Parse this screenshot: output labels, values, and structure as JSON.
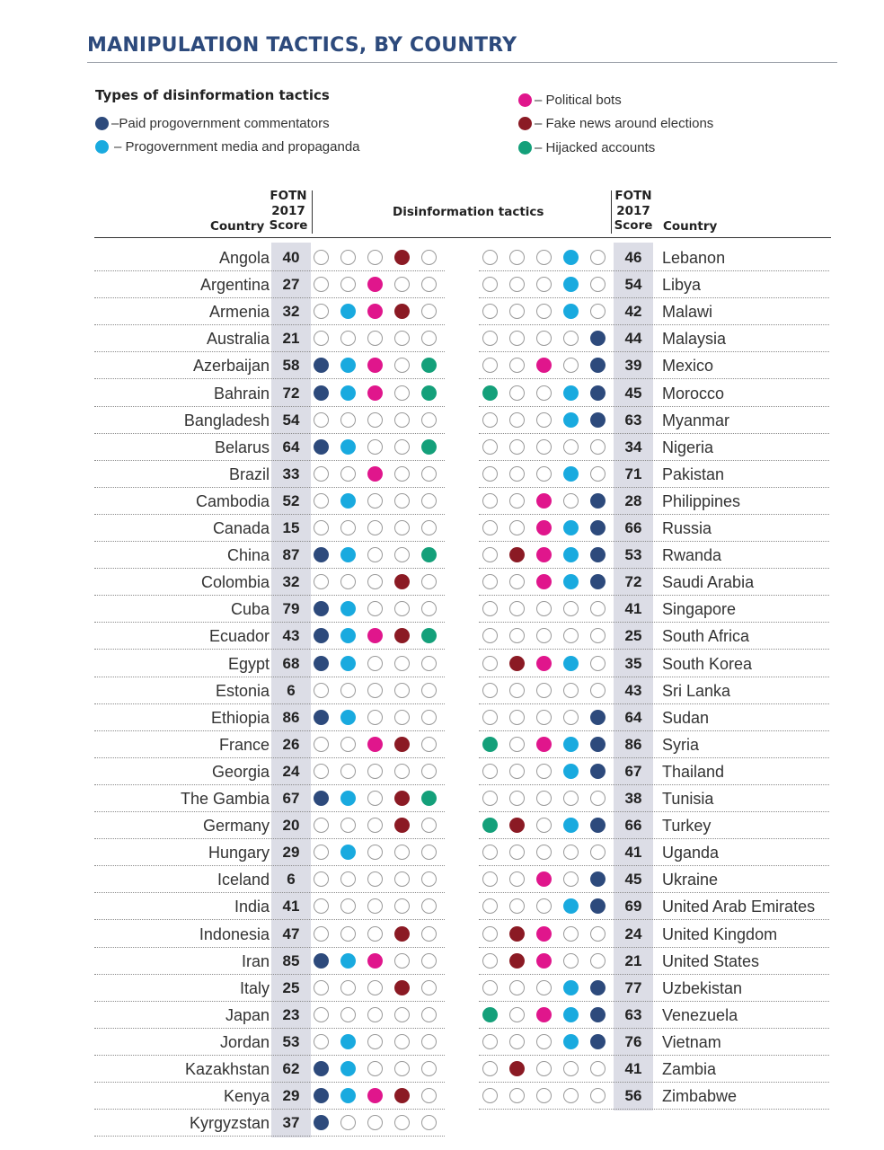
{
  "title": "MANIPULATION TACTICS, BY COUNTRY",
  "legend": {
    "title": "Types of disinformation tactics",
    "items": [
      {
        "key": "paid",
        "label": "–Paid progovernment commentators",
        "color": "#2d4a7c"
      },
      {
        "key": "media",
        "label": "– Progovernment media and propaganda",
        "color": "#19aadf"
      },
      {
        "key": "bots",
        "label": "– Political bots",
        "color": "#e0168c"
      },
      {
        "key": "fake",
        "label": "– Fake news around elections",
        "color": "#8b1a24"
      },
      {
        "key": "hijack",
        "label": "– Hijacked accounts",
        "color": "#14a07a"
      }
    ]
  },
  "header": {
    "country": "Country",
    "score_line1": "FOTN",
    "score_line2": "2017",
    "score_line3": "Score",
    "tactics": "Disinformation tactics"
  },
  "chart_data": {
    "type": "table",
    "columns": [
      "Country",
      "FOTN 2017 Score",
      "Disinformation tactics"
    ],
    "left": [
      {
        "country": "Angola",
        "score": 40,
        "tactics": [
          0,
          0,
          0,
          1,
          0
        ]
      },
      {
        "country": "Argentina",
        "score": 27,
        "tactics": [
          0,
          0,
          1,
          0,
          0
        ]
      },
      {
        "country": "Armenia",
        "score": 32,
        "tactics": [
          0,
          1,
          1,
          1,
          0
        ]
      },
      {
        "country": "Australia",
        "score": 21,
        "tactics": [
          0,
          0,
          0,
          0,
          0
        ]
      },
      {
        "country": "Azerbaijan",
        "score": 58,
        "tactics": [
          1,
          1,
          1,
          0,
          1
        ]
      },
      {
        "country": "Bahrain",
        "score": 72,
        "tactics": [
          1,
          1,
          1,
          0,
          1
        ]
      },
      {
        "country": "Bangladesh",
        "score": 54,
        "tactics": [
          0,
          0,
          0,
          0,
          0
        ]
      },
      {
        "country": "Belarus",
        "score": 64,
        "tactics": [
          1,
          1,
          0,
          0,
          1
        ]
      },
      {
        "country": "Brazil",
        "score": 33,
        "tactics": [
          0,
          0,
          1,
          0,
          0
        ]
      },
      {
        "country": "Cambodia",
        "score": 52,
        "tactics": [
          0,
          1,
          0,
          0,
          0
        ]
      },
      {
        "country": "Canada",
        "score": 15,
        "tactics": [
          0,
          0,
          0,
          0,
          0
        ]
      },
      {
        "country": "China",
        "score": 87,
        "tactics": [
          1,
          1,
          0,
          0,
          1
        ]
      },
      {
        "country": "Colombia",
        "score": 32,
        "tactics": [
          0,
          0,
          0,
          1,
          0
        ]
      },
      {
        "country": "Cuba",
        "score": 79,
        "tactics": [
          1,
          1,
          0,
          0,
          0
        ]
      },
      {
        "country": "Ecuador",
        "score": 43,
        "tactics": [
          1,
          1,
          1,
          1,
          1
        ]
      },
      {
        "country": "Egypt",
        "score": 68,
        "tactics": [
          1,
          1,
          0,
          0,
          0
        ]
      },
      {
        "country": "Estonia",
        "score": 6,
        "tactics": [
          0,
          0,
          0,
          0,
          0
        ]
      },
      {
        "country": "Ethiopia",
        "score": 86,
        "tactics": [
          1,
          1,
          0,
          0,
          0
        ]
      },
      {
        "country": "France",
        "score": 26,
        "tactics": [
          0,
          0,
          1,
          1,
          0
        ]
      },
      {
        "country": "Georgia",
        "score": 24,
        "tactics": [
          0,
          0,
          0,
          0,
          0
        ]
      },
      {
        "country": "The Gambia",
        "score": 67,
        "tactics": [
          1,
          1,
          0,
          1,
          1
        ]
      },
      {
        "country": "Germany",
        "score": 20,
        "tactics": [
          0,
          0,
          0,
          1,
          0
        ]
      },
      {
        "country": "Hungary",
        "score": 29,
        "tactics": [
          0,
          1,
          0,
          0,
          0
        ]
      },
      {
        "country": "Iceland",
        "score": 6,
        "tactics": [
          0,
          0,
          0,
          0,
          0
        ]
      },
      {
        "country": "India",
        "score": 41,
        "tactics": [
          0,
          0,
          0,
          0,
          0
        ]
      },
      {
        "country": "Indonesia",
        "score": 47,
        "tactics": [
          0,
          0,
          0,
          1,
          0
        ]
      },
      {
        "country": "Iran",
        "score": 85,
        "tactics": [
          1,
          1,
          1,
          0,
          0
        ]
      },
      {
        "country": "Italy",
        "score": 25,
        "tactics": [
          0,
          0,
          0,
          1,
          0
        ]
      },
      {
        "country": "Japan",
        "score": 23,
        "tactics": [
          0,
          0,
          0,
          0,
          0
        ]
      },
      {
        "country": "Jordan",
        "score": 53,
        "tactics": [
          0,
          1,
          0,
          0,
          0
        ]
      },
      {
        "country": "Kazakhstan",
        "score": 62,
        "tactics": [
          1,
          1,
          0,
          0,
          0
        ]
      },
      {
        "country": "Kenya",
        "score": 29,
        "tactics": [
          1,
          1,
          1,
          1,
          0
        ]
      },
      {
        "country": "Kyrgyzstan",
        "score": 37,
        "tactics": [
          1,
          0,
          0,
          0,
          0
        ]
      }
    ],
    "right": [
      {
        "country": "Lebanon",
        "score": 46,
        "tactics": [
          0,
          0,
          0,
          1,
          0
        ]
      },
      {
        "country": "Libya",
        "score": 54,
        "tactics": [
          0,
          0,
          0,
          1,
          0
        ]
      },
      {
        "country": "Malawi",
        "score": 42,
        "tactics": [
          0,
          0,
          0,
          1,
          0
        ]
      },
      {
        "country": "Malaysia",
        "score": 44,
        "tactics": [
          0,
          0,
          0,
          0,
          1
        ]
      },
      {
        "country": "Mexico",
        "score": 39,
        "tactics": [
          0,
          0,
          1,
          0,
          1
        ]
      },
      {
        "country": "Morocco",
        "score": 45,
        "tactics": [
          1,
          0,
          0,
          1,
          1
        ]
      },
      {
        "country": "Myanmar",
        "score": 63,
        "tactics": [
          0,
          0,
          0,
          1,
          1
        ]
      },
      {
        "country": "Nigeria",
        "score": 34,
        "tactics": [
          0,
          0,
          0,
          0,
          0
        ]
      },
      {
        "country": "Pakistan",
        "score": 71,
        "tactics": [
          0,
          0,
          0,
          1,
          0
        ]
      },
      {
        "country": "Philippines",
        "score": 28,
        "tactics": [
          0,
          0,
          1,
          0,
          1
        ]
      },
      {
        "country": "Russia",
        "score": 66,
        "tactics": [
          0,
          0,
          1,
          1,
          1
        ]
      },
      {
        "country": "Rwanda",
        "score": 53,
        "tactics": [
          0,
          1,
          1,
          1,
          1
        ]
      },
      {
        "country": "Saudi Arabia",
        "score": 72,
        "tactics": [
          0,
          0,
          1,
          1,
          1
        ]
      },
      {
        "country": "Singapore",
        "score": 41,
        "tactics": [
          0,
          0,
          0,
          0,
          0
        ]
      },
      {
        "country": "South Africa",
        "score": 25,
        "tactics": [
          0,
          0,
          0,
          0,
          0
        ]
      },
      {
        "country": "South Korea",
        "score": 35,
        "tactics": [
          0,
          1,
          1,
          1,
          0
        ]
      },
      {
        "country": "Sri Lanka",
        "score": 43,
        "tactics": [
          0,
          0,
          0,
          0,
          0
        ]
      },
      {
        "country": "Sudan",
        "score": 64,
        "tactics": [
          0,
          0,
          0,
          0,
          1
        ]
      },
      {
        "country": "Syria",
        "score": 86,
        "tactics": [
          1,
          0,
          1,
          1,
          1
        ]
      },
      {
        "country": "Thailand",
        "score": 67,
        "tactics": [
          0,
          0,
          0,
          1,
          1
        ]
      },
      {
        "country": "Tunisia",
        "score": 38,
        "tactics": [
          0,
          0,
          0,
          0,
          0
        ]
      },
      {
        "country": "Turkey",
        "score": 66,
        "tactics": [
          1,
          1,
          0,
          1,
          1
        ]
      },
      {
        "country": "Uganda",
        "score": 41,
        "tactics": [
          0,
          0,
          0,
          0,
          0
        ]
      },
      {
        "country": "Ukraine",
        "score": 45,
        "tactics": [
          0,
          0,
          1,
          0,
          1
        ]
      },
      {
        "country": "United Arab Emirates",
        "score": 69,
        "tactics": [
          0,
          0,
          0,
          1,
          1
        ]
      },
      {
        "country": "United Kingdom",
        "score": 24,
        "tactics": [
          0,
          1,
          1,
          0,
          0
        ]
      },
      {
        "country": "United States",
        "score": 21,
        "tactics": [
          0,
          1,
          1,
          0,
          0
        ]
      },
      {
        "country": "Uzbekistan",
        "score": 77,
        "tactics": [
          0,
          0,
          0,
          1,
          1
        ]
      },
      {
        "country": "Venezuela",
        "score": 63,
        "tactics": [
          1,
          0,
          1,
          1,
          1
        ]
      },
      {
        "country": "Vietnam",
        "score": 76,
        "tactics": [
          0,
          0,
          0,
          1,
          1
        ]
      },
      {
        "country": "Zambia",
        "score": 41,
        "tactics": [
          0,
          1,
          0,
          0,
          0
        ]
      },
      {
        "country": "Zimbabwe",
        "score": 56,
        "tactics": [
          0,
          0,
          0,
          0,
          0
        ]
      }
    ],
    "left_dot_colors": [
      "#2d4a7c",
      "#19aadf",
      "#e0168c",
      "#8b1a24",
      "#14a07a"
    ],
    "right_dot_colors": [
      "#14a07a",
      "#8b1a24",
      "#e0168c",
      "#19aadf",
      "#2d4a7c"
    ]
  }
}
